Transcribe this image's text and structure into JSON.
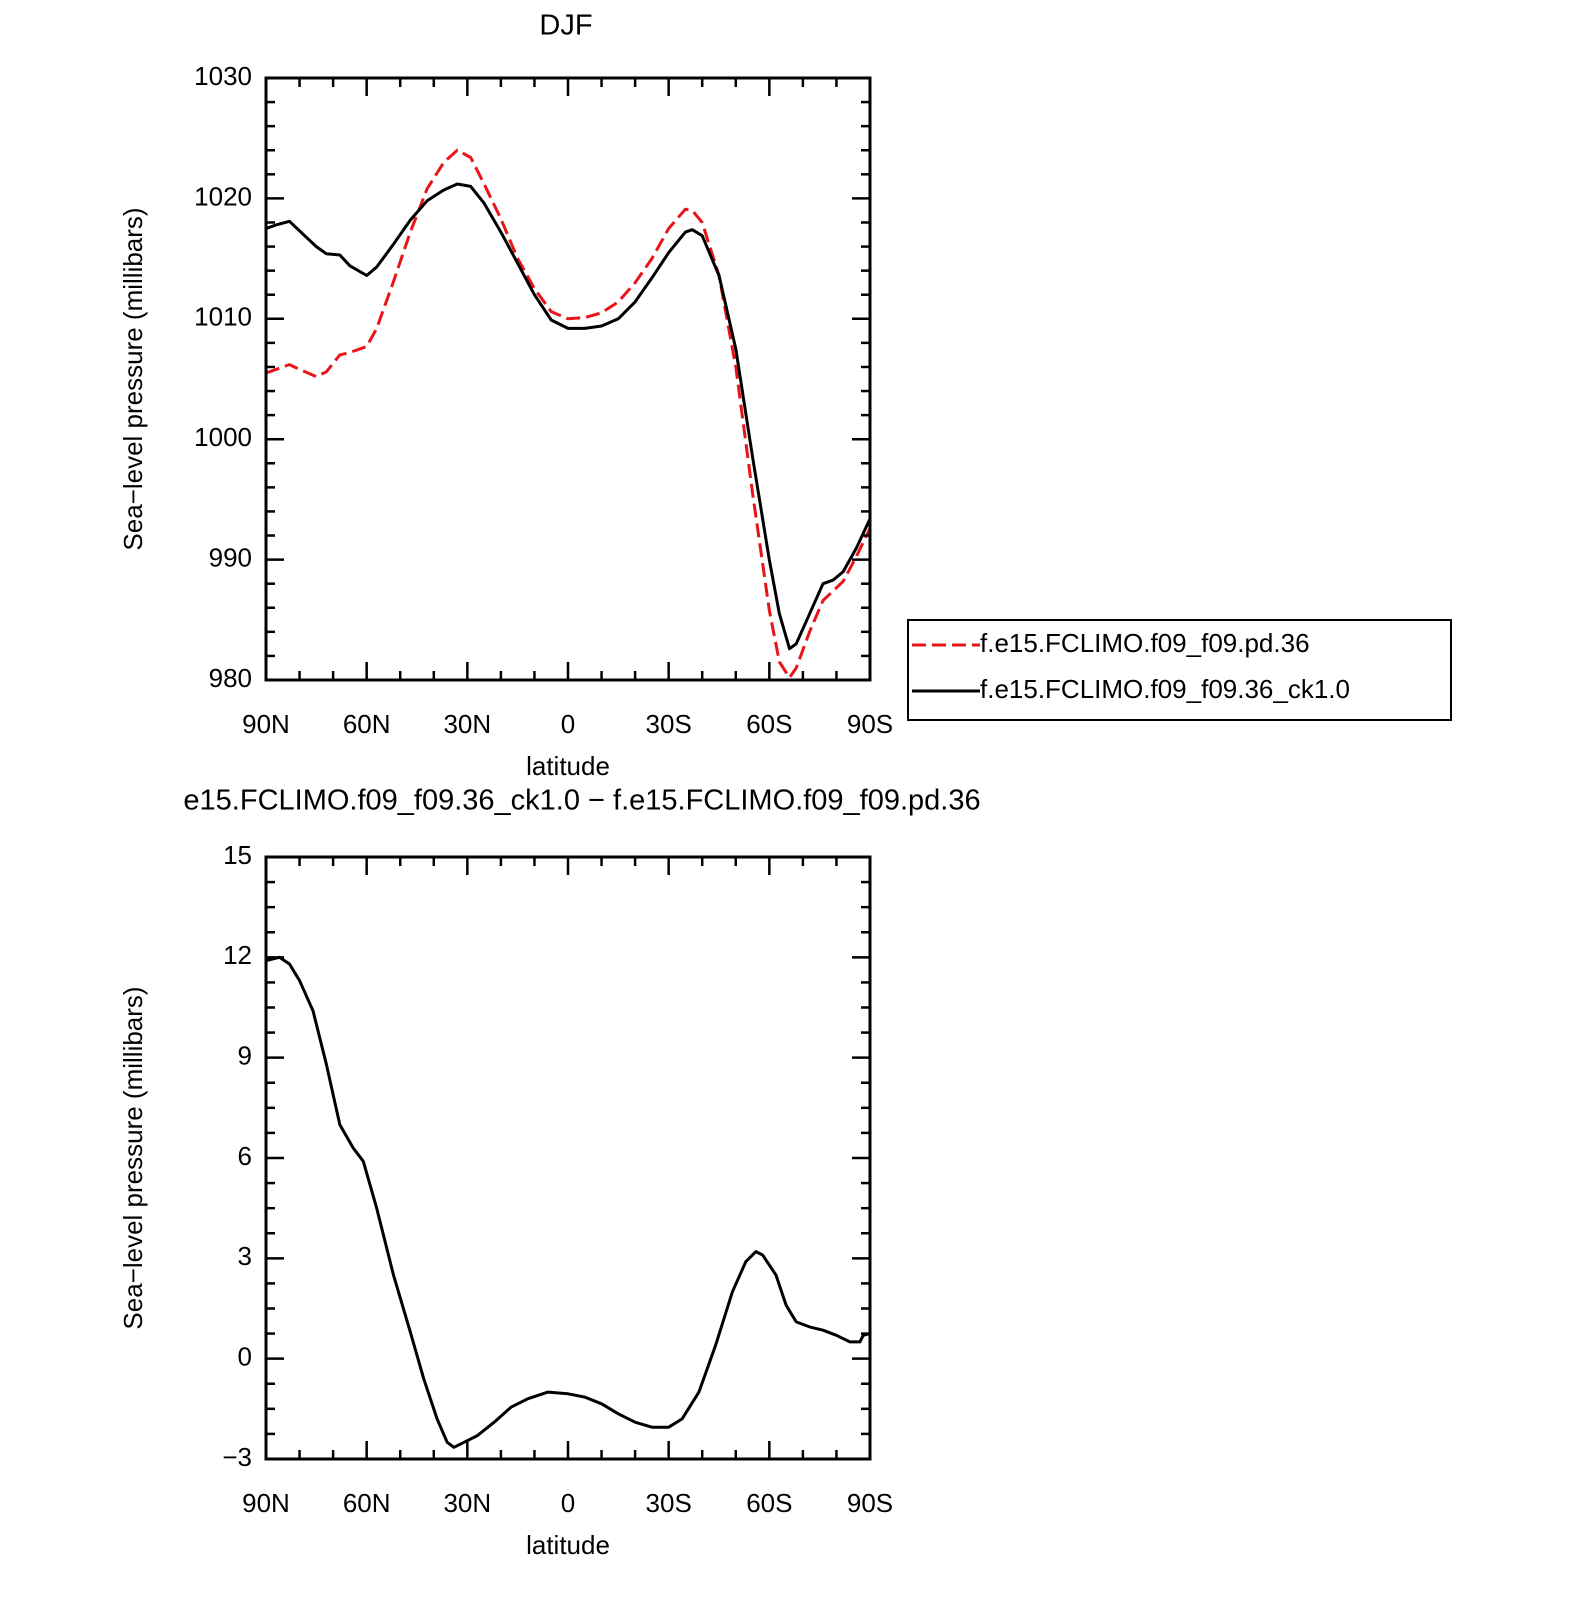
{
  "chart_data": [
    {
      "type": "line",
      "title": "DJF",
      "xlabel": "latitude",
      "ylabel": "Sea−level pressure (millibars)",
      "xlim": [
        90,
        -90
      ],
      "xticks": [
        {
          "value": 90,
          "label": "90N"
        },
        {
          "value": 60,
          "label": "60N"
        },
        {
          "value": 30,
          "label": "30N"
        },
        0,
        {
          "value": -30,
          "label": "30S"
        },
        {
          "value": -60,
          "label": "60S"
        },
        {
          "value": -90,
          "label": "90S"
        }
      ],
      "xminorticks": [
        80,
        70,
        50,
        40,
        20,
        10,
        -10,
        -20,
        -40,
        -50,
        -70,
        -80
      ],
      "ylim": [
        980,
        1030
      ],
      "yticks": [
        980,
        990,
        1000,
        1010,
        1020,
        1030
      ],
      "yminorticks": [
        982,
        984,
        986,
        988,
        992,
        994,
        996,
        998,
        1002,
        1004,
        1006,
        1008,
        1012,
        1014,
        1016,
        1018,
        1022,
        1024,
        1026,
        1028
      ],
      "legend": "right",
      "x": [
        90,
        87,
        83,
        80,
        75,
        72,
        68,
        65,
        60,
        57,
        52,
        47,
        42,
        37,
        33,
        29,
        25,
        20,
        15,
        10,
        5,
        0,
        -5,
        -10,
        -15,
        -20,
        -25,
        -30,
        -35,
        -37,
        -40,
        -45,
        -50,
        -55,
        -60,
        -63,
        -66,
        -68,
        -72,
        -76,
        -79,
        -82,
        -86,
        -90
      ],
      "series": [
        {
          "name": "f.e15.FCLIMO.f09_f09.pd.36",
          "color": "#e8141a",
          "dashed": true,
          "values": [
            1005.5,
            1005.8,
            1006.2,
            1005.8,
            1005.2,
            1005.6,
            1007.0,
            1007.2,
            1007.7,
            1009.2,
            1013.1,
            1017.2,
            1020.8,
            1023.0,
            1024.0,
            1023.4,
            1021.2,
            1018.3,
            1015.0,
            1012.5,
            1010.6,
            1010.0,
            1010.1,
            1010.5,
            1011.4,
            1013.0,
            1015.0,
            1017.5,
            1019.1,
            1019.0,
            1018.0,
            1013.6,
            1006.0,
            995.5,
            985.8,
            981.5,
            980.2,
            981.0,
            984.0,
            986.6,
            987.4,
            988.2,
            990.3,
            992.6
          ]
        },
        {
          "name": "f.e15.FCLIMO.f09_f09.36_ck1.0",
          "color": "#000000",
          "dashed": false,
          "values": [
            1017.5,
            1017.8,
            1018.1,
            1017.3,
            1016.0,
            1015.4,
            1015.3,
            1014.4,
            1013.6,
            1014.3,
            1016.2,
            1018.2,
            1019.8,
            1020.7,
            1021.2,
            1021.0,
            1019.6,
            1017.2,
            1014.6,
            1012.0,
            1009.9,
            1009.2,
            1009.2,
            1009.4,
            1010.0,
            1011.4,
            1013.4,
            1015.5,
            1017.2,
            1017.4,
            1016.9,
            1013.6,
            1007.5,
            998.5,
            990.0,
            985.5,
            982.6,
            983.0,
            985.5,
            988.0,
            988.3,
            989.0,
            991.0,
            993.4
          ]
        }
      ]
    },
    {
      "type": "line",
      "title": "e15.FCLIMO.f09_f09.36_ck1.0 − f.e15.FCLIMO.f09_f09.pd.36",
      "xlabel": "latitude",
      "ylabel": "Sea−level pressure (millibars)",
      "xlim": [
        90,
        -90
      ],
      "xticks": [
        {
          "value": 90,
          "label": "90N"
        },
        {
          "value": 60,
          "label": "60N"
        },
        {
          "value": 30,
          "label": "30N"
        },
        0,
        {
          "value": -30,
          "label": "30S"
        },
        {
          "value": -60,
          "label": "60S"
        },
        {
          "value": -90,
          "label": "90S"
        }
      ],
      "xminorticks": [
        80,
        70,
        50,
        40,
        20,
        10,
        -10,
        -20,
        -40,
        -50,
        -70,
        -80
      ],
      "ylim": [
        -3,
        15
      ],
      "yticks": [
        {
          "value": -3,
          "label": "−3"
        },
        0,
        3,
        6,
        9,
        12,
        15
      ],
      "yminorticks": [
        -2.25,
        -1.5,
        -0.75,
        0.75,
        1.5,
        2.25,
        3.75,
        4.5,
        5.25,
        6.75,
        7.5,
        8.25,
        9.75,
        10.5,
        11.25,
        12.75,
        13.5,
        14.25
      ],
      "x": [
        90,
        86,
        83,
        80,
        76,
        72,
        68,
        64,
        61,
        57,
        52,
        47,
        43,
        39,
        36,
        34,
        31,
        27,
        22,
        17,
        12,
        6,
        0,
        -5,
        -10,
        -15,
        -20,
        -25,
        -30,
        -34,
        -39,
        -44,
        -49,
        -53,
        -56,
        -58,
        -62,
        -65,
        -68,
        -72,
        -76,
        -80,
        -84,
        -87,
        -88,
        -90
      ],
      "series": [
        {
          "color": "#000000",
          "dashed": false,
          "values": [
            11.9,
            12.0,
            11.8,
            11.3,
            10.4,
            8.8,
            7.0,
            6.3,
            5.9,
            4.5,
            2.5,
            0.8,
            -0.6,
            -1.8,
            -2.5,
            -2.65,
            -2.5,
            -2.3,
            -1.9,
            -1.45,
            -1.2,
            -1.0,
            -1.05,
            -1.15,
            -1.35,
            -1.65,
            -1.9,
            -2.05,
            -2.05,
            -1.8,
            -1.0,
            0.4,
            2.0,
            2.9,
            3.2,
            3.1,
            2.5,
            1.6,
            1.1,
            0.95,
            0.85,
            0.7,
            0.5,
            0.5,
            0.7,
            0.75
          ]
        }
      ]
    }
  ]
}
